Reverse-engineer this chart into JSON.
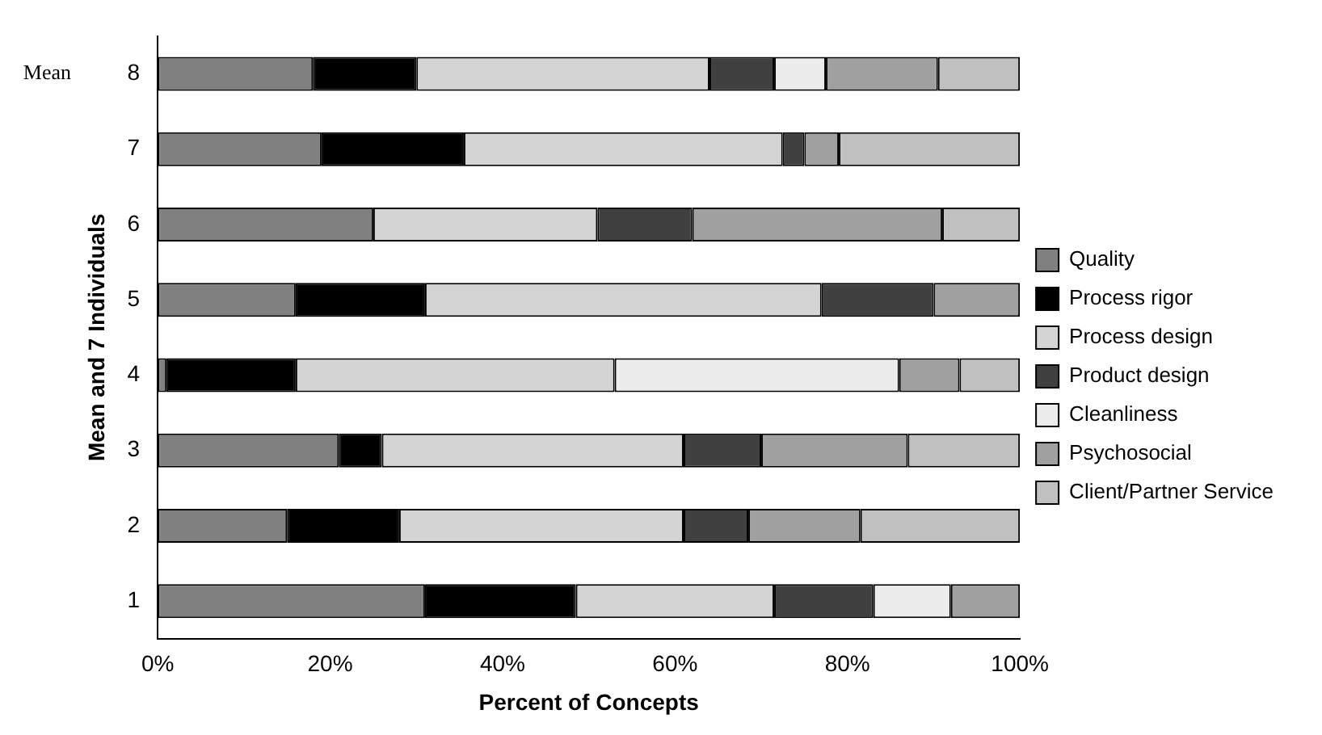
{
  "chart_data": {
    "type": "bar",
    "orientation": "horizontal",
    "stacked": true,
    "xlabel": "Percent of Concepts",
    "ylabel": "Mean and 7 Individuals",
    "annotations": [
      "Mean"
    ],
    "categories": [
      "8",
      "7",
      "6",
      "5",
      "4",
      "3",
      "2",
      "1"
    ],
    "series": [
      {
        "name": "Quality",
        "color": "#808080",
        "values": [
          18,
          19,
          25,
          16,
          1,
          21,
          15,
          31
        ]
      },
      {
        "name": "Process rigor",
        "color": "#000000",
        "values": [
          12,
          16.5,
          0,
          15,
          15,
          5,
          13,
          17.5
        ]
      },
      {
        "name": "Process design",
        "color": "#d4d4d4",
        "values": [
          34,
          37,
          26,
          46,
          37,
          35,
          33,
          23
        ]
      },
      {
        "name": "Product design",
        "color": "#404040",
        "values": [
          7.5,
          2.5,
          11,
          13,
          0,
          9,
          7.5,
          11.5
        ]
      },
      {
        "name": "Cleanliness",
        "color": "#ececec",
        "values": [
          6,
          0,
          0,
          0,
          33,
          0,
          0,
          9
        ]
      },
      {
        "name": "Psychosocial",
        "color": "#a0a0a0",
        "values": [
          13,
          4,
          29,
          10,
          7,
          17,
          13,
          8
        ]
      },
      {
        "name": "Client/Partner Service",
        "color": "#c0c0c0",
        "values": [
          9.5,
          21,
          9,
          0,
          7,
          13,
          18.5,
          0
        ]
      }
    ],
    "xlim": [
      0,
      100
    ],
    "xticks": [
      {
        "value": 0,
        "label": "0%"
      },
      {
        "value": 20,
        "label": "20%"
      },
      {
        "value": 40,
        "label": "40%"
      },
      {
        "value": 60,
        "label": "60%"
      },
      {
        "value": 80,
        "label": "80%"
      },
      {
        "value": 100,
        "label": "100%"
      }
    ],
    "grid": false,
    "legend": "right"
  }
}
